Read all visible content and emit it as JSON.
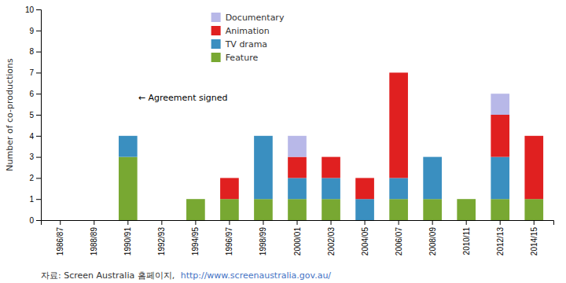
{
  "chart_data": {
    "type": "bar",
    "stacked": true,
    "categories": [
      "1986/87",
      "1988/89",
      "1990/91",
      "1992/93",
      "1994/95",
      "1996/97",
      "1998/99",
      "2000/01",
      "2002/03",
      "2004/05",
      "2006/07",
      "2008/09",
      "2010/11",
      "2012/13",
      "2014/15"
    ],
    "series": [
      {
        "name": "Feature",
        "color": "#78a832",
        "values": [
          0,
          0,
          3,
          0,
          1,
          1,
          1,
          1,
          1,
          0,
          1,
          1,
          1,
          1,
          1
        ]
      },
      {
        "name": "TV drama",
        "color": "#3a8fc0",
        "values": [
          0,
          0,
          1,
          0,
          0,
          0,
          3,
          1,
          1,
          1,
          1,
          2,
          0,
          2,
          0
        ]
      },
      {
        "name": "Animation",
        "color": "#e02020",
        "values": [
          0,
          0,
          0,
          0,
          0,
          1,
          0,
          1,
          1,
          1,
          5,
          0,
          0,
          2,
          3
        ]
      },
      {
        "name": "Documentary",
        "color": "#b8b8e8",
        "values": [
          0,
          0,
          0,
          0,
          0,
          0,
          0,
          1,
          0,
          0,
          0,
          0,
          0,
          1,
          0
        ]
      }
    ],
    "y_label": "Number of co-productions",
    "ylim": [
      0,
      10
    ],
    "yticks": [
      0,
      1,
      2,
      3,
      4,
      5,
      6,
      7,
      8,
      9,
      10
    ],
    "grid": false,
    "legend": "upper center",
    "annotations": [
      {
        "text": "← Agreement signed",
        "x": "1990/91",
        "y": 5.8
      }
    ],
    "source": {
      "text": "자료: Screen Australia 홈페이지, ",
      "link": "http://www.screenaustralia.gov.au/"
    }
  }
}
